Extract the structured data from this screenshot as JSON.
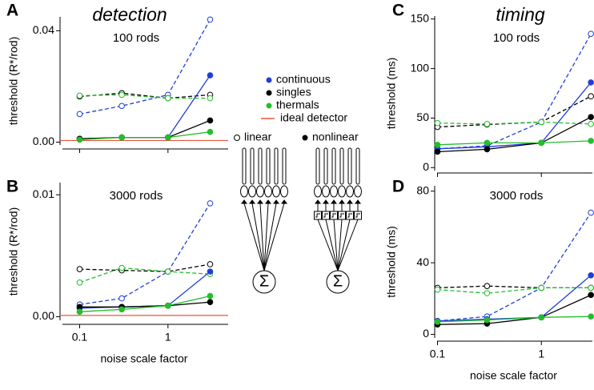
{
  "columns": [
    {
      "title": "detection"
    },
    {
      "title": "timing"
    }
  ],
  "legend": {
    "series": [
      {
        "name": "continuous",
        "color": "#1f3fd8"
      },
      {
        "name": "singles",
        "color": "#000000"
      },
      {
        "name": "thermals",
        "color": "#22bf2a"
      }
    ],
    "ideal": {
      "name": "ideal detector",
      "color": "#e8553a"
    },
    "linear": "linear",
    "nonlinear": "nonlinear"
  },
  "diagram": {
    "sum": "Σ"
  },
  "chart_data": [
    {
      "type": "line",
      "panel": "A",
      "subtitle": "100 rods",
      "ylabel": "threshold (R*/rod)",
      "log_x": true,
      "xtick_labels": false,
      "x": [
        0.1,
        0.3,
        1,
        3
      ],
      "xlim": [
        0.06,
        4.8
      ],
      "xticks": [
        0.1,
        1
      ],
      "ylim": [
        -0.001,
        0.045
      ],
      "yticks": [
        {
          "value": 0,
          "label": "0.00"
        },
        0.04
      ],
      "series": [
        {
          "linear": [
            0.0101,
            0.013,
            0.017,
            0.044
          ],
          "nonlinear": [
            0.0012,
            0.0017,
            0.0017,
            0.024
          ]
        },
        {
          "linear": [
            0.0164,
            0.0176,
            0.0158,
            0.017
          ],
          "nonlinear": [
            0.0012,
            0.0017,
            0.0017,
            0.0078
          ]
        },
        {
          "linear": [
            0.0167,
            0.017,
            0.0158,
            0.0158
          ],
          "nonlinear": [
            0.0009,
            0.0017,
            0.0017,
            0.0037
          ]
        }
      ],
      "ideal": 0.0006
    },
    {
      "type": "line",
      "panel": "B",
      "subtitle": "3000 rods",
      "ylabel": "threshold (R*/rod)",
      "xlabel": "noise scale factor",
      "log_x": true,
      "xtick_labels": true,
      "x": [
        0.1,
        0.3,
        1,
        3
      ],
      "xlim": [
        0.06,
        4.8
      ],
      "xticks": [
        0.1,
        1
      ],
      "ylim": [
        -0.0003,
        0.011
      ],
      "yticks": [
        {
          "value": 0,
          "label": "0.00"
        },
        0.01
      ],
      "series": [
        {
          "linear": [
            0.001,
            0.0015,
            0.0037,
            0.0093
          ],
          "nonlinear": [
            0.0007,
            0.0008,
            0.0009,
            0.0037
          ]
        },
        {
          "linear": [
            0.0039,
            0.0038,
            0.0037,
            0.0043
          ],
          "nonlinear": [
            0.0008,
            0.0008,
            0.0009,
            0.0012
          ]
        },
        {
          "linear": [
            0.0028,
            0.004,
            0.0037,
            0.0035
          ],
          "nonlinear": [
            0.0004,
            0.0006,
            0.0009,
            0.0017
          ]
        }
      ],
      "ideal": 0.0001
    },
    {
      "type": "line",
      "panel": "C",
      "subtitle": "100 rods",
      "ylabel": "threshold (ms)",
      "log_x": true,
      "xtick_labels": false,
      "x": [
        0.1,
        0.3,
        1,
        3
      ],
      "xlim": [
        0.094,
        3.1
      ],
      "xticks": [
        0.1,
        1
      ],
      "ylim": [
        -3,
        153
      ],
      "yticks": [
        0,
        50,
        100,
        150
      ],
      "series": [
        {
          "linear": [
            19,
            22,
            46,
            135
          ],
          "nonlinear": [
            19,
            21,
            25,
            86
          ]
        },
        {
          "linear": [
            41,
            43.5,
            46,
            72
          ],
          "nonlinear": [
            16,
            18.5,
            25,
            51
          ]
        },
        {
          "linear": [
            45,
            44,
            46,
            44
          ],
          "nonlinear": [
            23,
            25,
            25,
            27
          ]
        }
      ]
    },
    {
      "type": "line",
      "panel": "D",
      "subtitle": "3000 rods",
      "ylabel": "threshold (ms)",
      "xlabel": "noise scale factor",
      "log_x": true,
      "xtick_labels": true,
      "x": [
        0.1,
        0.3,
        1,
        3
      ],
      "xlim": [
        0.094,
        3.1
      ],
      "xticks": [
        0.1,
        1
      ],
      "ylim": [
        -2,
        83
      ],
      "yticks": [
        0,
        40,
        80
      ],
      "series": [
        {
          "linear": [
            7.5,
            10,
            26,
            68
          ],
          "nonlinear": [
            7.5,
            8.5,
            9.5,
            33
          ]
        },
        {
          "linear": [
            26,
            27,
            26,
            26
          ],
          "nonlinear": [
            5.5,
            6,
            9.5,
            22
          ]
        },
        {
          "linear": [
            25,
            23,
            26,
            26
          ],
          "nonlinear": [
            7,
            8,
            9.5,
            10
          ]
        }
      ]
    }
  ]
}
